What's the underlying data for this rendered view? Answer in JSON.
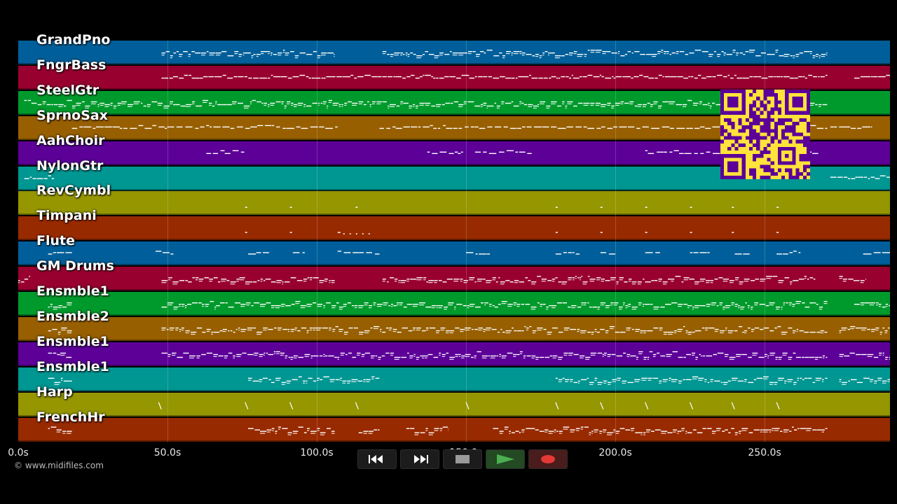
{
  "app": {
    "copyright": "© www.midifiles.com"
  },
  "tracks": [
    {
      "name": "GrandPno",
      "color": "#005f9a"
    },
    {
      "name": "FngrBass",
      "color": "#980030"
    },
    {
      "name": "SteelGtr",
      "color": "#009a2c"
    },
    {
      "name": "SprnoSax",
      "color": "#975f00"
    },
    {
      "name": "AahChoir",
      "color": "#5c0098"
    },
    {
      "name": "NylonGtr",
      "color": "#009692"
    },
    {
      "name": "RevCymbl",
      "color": "#959600"
    },
    {
      "name": "Timpani",
      "color": "#982a00"
    },
    {
      "name": "Flute",
      "color": "#005f9a"
    },
    {
      "name": "GM Drums",
      "color": "#980030"
    },
    {
      "name": "Ensmble1",
      "color": "#009a2c"
    },
    {
      "name": "Ensmble2",
      "color": "#975f00"
    },
    {
      "name": "Ensmble1",
      "color": "#5c0098"
    },
    {
      "name": "Ensmble1",
      "color": "#009692"
    },
    {
      "name": "Harp",
      "color": "#959600"
    },
    {
      "name": "FrenchHr",
      "color": "#982a00"
    }
  ],
  "time_axis": {
    "min_seconds": 0,
    "max_seconds": 292,
    "ticks": [
      {
        "value": 0,
        "label": "0.0s"
      },
      {
        "value": 50,
        "label": "50.0s"
      },
      {
        "value": 100,
        "label": "100.0s"
      },
      {
        "value": 150,
        "label": "150.0s"
      },
      {
        "value": 200,
        "label": "200.0s"
      },
      {
        "value": 250,
        "label": "250.0s"
      }
    ]
  },
  "note_segments": [
    {
      "track": 0,
      "spans": [
        [
          48,
          106
        ],
        [
          122,
          271
        ]
      ],
      "density": "dense"
    },
    {
      "track": 1,
      "spans": [
        [
          48,
          271
        ],
        [
          280,
          292
        ]
      ],
      "density": "line"
    },
    {
      "track": 2,
      "spans": [
        [
          2,
          271
        ]
      ],
      "density": "dense"
    },
    {
      "track": 3,
      "spans": [
        [
          18,
          34
        ],
        [
          34,
          107
        ],
        [
          121,
          271
        ],
        [
          272,
          286
        ]
      ],
      "density": "sparse"
    },
    {
      "track": 4,
      "spans": [
        [
          63,
          76
        ],
        [
          137,
          149
        ],
        [
          153,
          172
        ],
        [
          210,
          268
        ]
      ],
      "density": "sparse"
    },
    {
      "track": 5,
      "spans": [
        [
          2,
          12
        ],
        [
          272,
          292
        ]
      ],
      "density": "line"
    },
    {
      "track": 6,
      "spans": [
        [
          76,
          77
        ],
        [
          91,
          92
        ],
        [
          113,
          114
        ],
        [
          180,
          181
        ],
        [
          195,
          196
        ],
        [
          210,
          211
        ],
        [
          225,
          226
        ],
        [
          239,
          240
        ],
        [
          254,
          255
        ]
      ],
      "density": "dots"
    },
    {
      "track": 7,
      "spans": [
        [
          76,
          77
        ],
        [
          91,
          92
        ],
        [
          107,
          118
        ],
        [
          180,
          181
        ],
        [
          195,
          196
        ],
        [
          210,
          211
        ],
        [
          225,
          226
        ],
        [
          239,
          240
        ],
        [
          254,
          255
        ]
      ],
      "density": "dots"
    },
    {
      "track": 8,
      "spans": [
        [
          10,
          18
        ],
        [
          46,
          52
        ],
        [
          77,
          84
        ],
        [
          92,
          96
        ],
        [
          107,
          121
        ],
        [
          150,
          158
        ],
        [
          180,
          188
        ],
        [
          195,
          200
        ],
        [
          210,
          215
        ],
        [
          225,
          232
        ],
        [
          240,
          245
        ],
        [
          254,
          262
        ],
        [
          283,
          292
        ]
      ],
      "density": "sparse"
    },
    {
      "track": 9,
      "spans": [
        [
          0,
          4
        ],
        [
          48,
          106
        ],
        [
          122,
          267
        ],
        [
          275,
          284
        ]
      ],
      "density": "dense"
    },
    {
      "track": 10,
      "spans": [
        [
          10,
          18
        ],
        [
          48,
          271
        ],
        [
          280,
          292
        ]
      ],
      "density": "dense"
    },
    {
      "track": 11,
      "spans": [
        [
          10,
          18
        ],
        [
          48,
          271
        ],
        [
          275,
          292
        ]
      ],
      "density": "dense"
    },
    {
      "track": 12,
      "spans": [
        [
          10,
          18
        ],
        [
          48,
          271
        ],
        [
          275,
          292
        ]
      ],
      "density": "dense"
    },
    {
      "track": 13,
      "spans": [
        [
          10,
          18
        ],
        [
          77,
          121
        ],
        [
          180,
          271
        ],
        [
          275,
          292
        ]
      ],
      "density": "dense"
    },
    {
      "track": 14,
      "spans": [
        [
          47,
          48
        ],
        [
          76,
          77
        ],
        [
          91,
          92
        ],
        [
          113,
          114
        ],
        [
          150,
          151
        ],
        [
          180,
          181
        ],
        [
          195,
          196
        ],
        [
          210,
          211
        ],
        [
          225,
          226
        ],
        [
          239,
          240
        ],
        [
          254,
          255
        ]
      ],
      "density": "ticks"
    },
    {
      "track": 15,
      "spans": [
        [
          10,
          18
        ],
        [
          77,
          106
        ],
        [
          114,
          121
        ],
        [
          130,
          144
        ],
        [
          159,
          271
        ]
      ],
      "density": "dense"
    }
  ],
  "transport": {
    "buttons": [
      {
        "name": "rewind",
        "icon": "rewind-icon"
      },
      {
        "name": "fast-forward",
        "icon": "fast-forward-icon"
      },
      {
        "name": "stop",
        "icon": "stop-icon"
      },
      {
        "name": "play",
        "icon": "play-icon"
      },
      {
        "name": "record",
        "icon": "record-icon"
      }
    ]
  },
  "colors": {
    "note": "#ffffff",
    "qr_background": "#ffe23a",
    "qr_foreground": "#5c0098",
    "play": "#4caf50",
    "record": "#e53935"
  }
}
